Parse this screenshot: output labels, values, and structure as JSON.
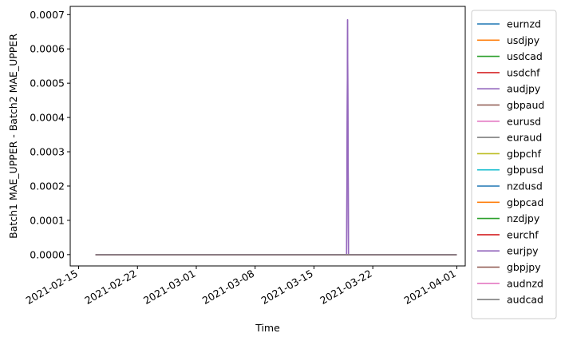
{
  "chart_data": {
    "type": "line",
    "title": "",
    "xlabel": "Time",
    "ylabel": "Batch1 MAE_UPPER - Batch2 MAE_UPPER",
    "xlim": [
      "2021-02-14",
      "2021-04-02"
    ],
    "ylim": [
      -3.3e-05,
      0.000724
    ],
    "x_ticks": [
      "2021-02-15",
      "2021-02-22",
      "2021-03-01",
      "2021-03-08",
      "2021-03-15",
      "2021-03-22",
      "2021-04-01"
    ],
    "y_ticks": [
      "0.0000",
      "0.0001",
      "0.0002",
      "0.0003",
      "0.0004",
      "0.0005",
      "0.0006",
      "0.0007"
    ],
    "y_tick_values": [
      0,
      0.0001,
      0.0002,
      0.0003,
      0.0004,
      0.0005,
      0.0006,
      0.0007
    ],
    "grid": false,
    "legend_position": "outside-right",
    "series": [
      {
        "name": "eurnzd",
        "color": "#1f77b4",
        "x": [
          "2021-02-17",
          "2021-04-01"
        ],
        "y": [
          0,
          0
        ]
      },
      {
        "name": "usdjpy",
        "color": "#ff7f0e",
        "x": [
          "2021-02-17",
          "2021-04-01"
        ],
        "y": [
          0,
          0
        ]
      },
      {
        "name": "usdcad",
        "color": "#2ca02c",
        "x": [
          "2021-02-17",
          "2021-04-01"
        ],
        "y": [
          0,
          0
        ]
      },
      {
        "name": "usdchf",
        "color": "#d62728",
        "x": [
          "2021-02-17",
          "2021-04-01"
        ],
        "y": [
          0,
          0
        ]
      },
      {
        "name": "audjpy",
        "color": "#9467bd",
        "x": [
          "2021-02-17",
          "2021-03-19",
          "2021-03-19",
          "2021-03-19",
          "2021-04-01"
        ],
        "y": [
          0,
          0,
          0.000685,
          0,
          0
        ]
      },
      {
        "name": "gbpaud",
        "color": "#8c564b",
        "x": [
          "2021-02-17",
          "2021-04-01"
        ],
        "y": [
          0,
          0
        ]
      },
      {
        "name": "eurusd",
        "color": "#e377c2",
        "x": [
          "2021-02-17",
          "2021-04-01"
        ],
        "y": [
          0,
          0
        ]
      },
      {
        "name": "euraud",
        "color": "#7f7f7f",
        "x": [
          "2021-02-17",
          "2021-04-01"
        ],
        "y": [
          0,
          0
        ]
      },
      {
        "name": "gbpchf",
        "color": "#bcbd22",
        "x": [
          "2021-02-17",
          "2021-04-01"
        ],
        "y": [
          0,
          0
        ]
      },
      {
        "name": "gbpusd",
        "color": "#17becf",
        "x": [
          "2021-02-17",
          "2021-04-01"
        ],
        "y": [
          0,
          0
        ]
      },
      {
        "name": "nzdusd",
        "color": "#1f77b4",
        "x": [
          "2021-02-17",
          "2021-04-01"
        ],
        "y": [
          0,
          0
        ]
      },
      {
        "name": "gbpcad",
        "color": "#ff7f0e",
        "x": [
          "2021-02-17",
          "2021-04-01"
        ],
        "y": [
          0,
          0
        ]
      },
      {
        "name": "nzdjpy",
        "color": "#2ca02c",
        "x": [
          "2021-02-17",
          "2021-04-01"
        ],
        "y": [
          0,
          0
        ]
      },
      {
        "name": "eurchf",
        "color": "#d62728",
        "x": [
          "2021-02-17",
          "2021-04-01"
        ],
        "y": [
          0,
          0
        ]
      },
      {
        "name": "eurjpy",
        "color": "#9467bd",
        "x": [
          "2021-02-17",
          "2021-03-19",
          "2021-03-19",
          "2021-03-19",
          "2021-04-01"
        ],
        "y": [
          0,
          0,
          0.000685,
          0,
          0
        ]
      },
      {
        "name": "gbpjpy",
        "color": "#8c564b",
        "x": [
          "2021-02-17",
          "2021-04-01"
        ],
        "y": [
          0,
          0
        ]
      },
      {
        "name": "audnzd",
        "color": "#e377c2",
        "x": [
          "2021-02-17",
          "2021-04-01"
        ],
        "y": [
          0,
          0
        ]
      },
      {
        "name": "audcad",
        "color": "#7f7f7f",
        "x": [
          "2021-02-17",
          "2021-04-01"
        ],
        "y": [
          0,
          0
        ]
      }
    ]
  }
}
